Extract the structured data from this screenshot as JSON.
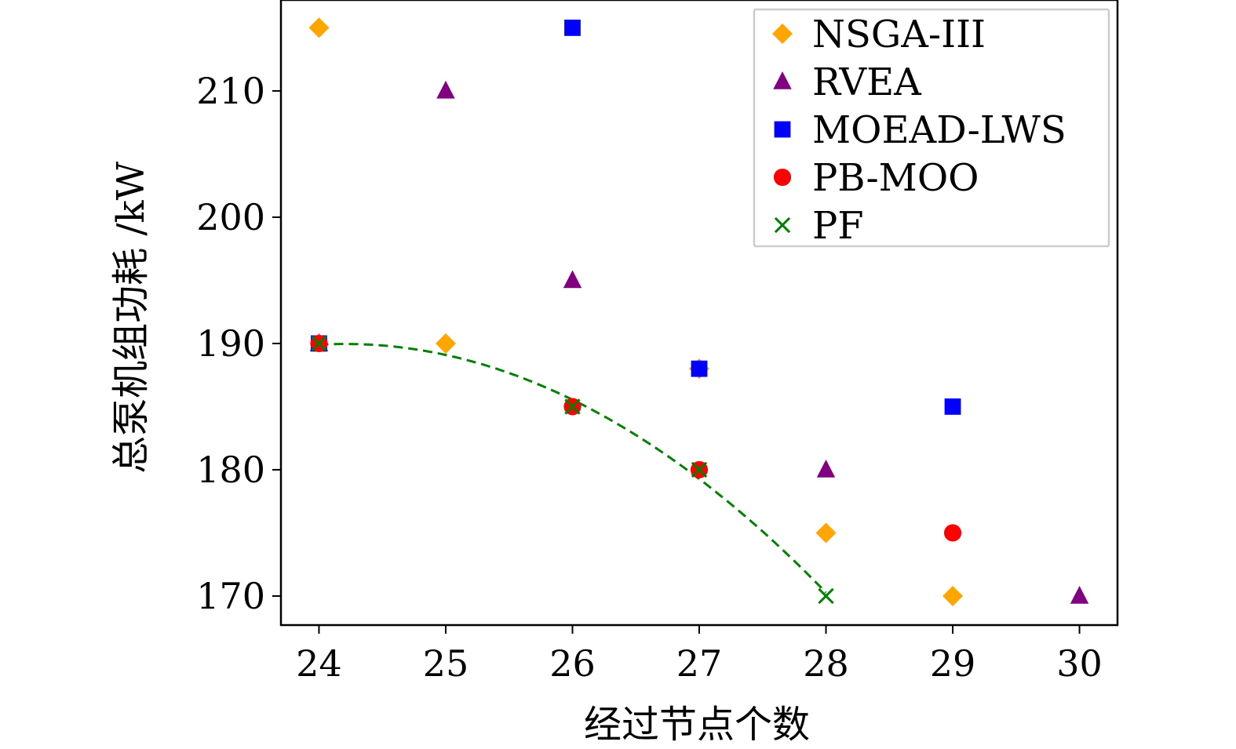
{
  "chart_data": {
    "type": "scatter",
    "xlabel": "经过节点个数",
    "ylabel": "总泵机组功耗 /kW",
    "xlim": [
      23.7,
      30.3
    ],
    "ylim": [
      167.7,
      217.2
    ],
    "xticks": [
      24,
      25,
      26,
      27,
      28,
      29,
      30
    ],
    "yticks": [
      170,
      180,
      190,
      200,
      210
    ],
    "grid": false,
    "legend_position": "top-right",
    "series": [
      {
        "name": "NSGA-III",
        "marker": "diamond",
        "color": "#ffa500",
        "x": [
          24,
          25,
          27,
          28,
          29
        ],
        "y": [
          215,
          190,
          188,
          175,
          170
        ]
      },
      {
        "name": "RVEA",
        "marker": "triangle",
        "color": "#800080",
        "x": [
          24,
          25,
          26,
          28,
          30
        ],
        "y": [
          190,
          210,
          195,
          180,
          170
        ]
      },
      {
        "name": "MOEAD-LWS",
        "marker": "square",
        "color": "#0000ff",
        "x": [
          24,
          26,
          27,
          29
        ],
        "y": [
          190,
          215,
          188,
          185
        ]
      },
      {
        "name": "PB-MOO",
        "marker": "circle",
        "color": "#ff0000",
        "x": [
          24,
          26,
          27,
          29
        ],
        "y": [
          190,
          185,
          180,
          175
        ]
      },
      {
        "name": "PF",
        "marker": "x",
        "color": "#008000",
        "x": [
          24,
          26,
          27,
          28
        ],
        "y": [
          190,
          185,
          180,
          170
        ],
        "line": "dashed"
      }
    ]
  }
}
